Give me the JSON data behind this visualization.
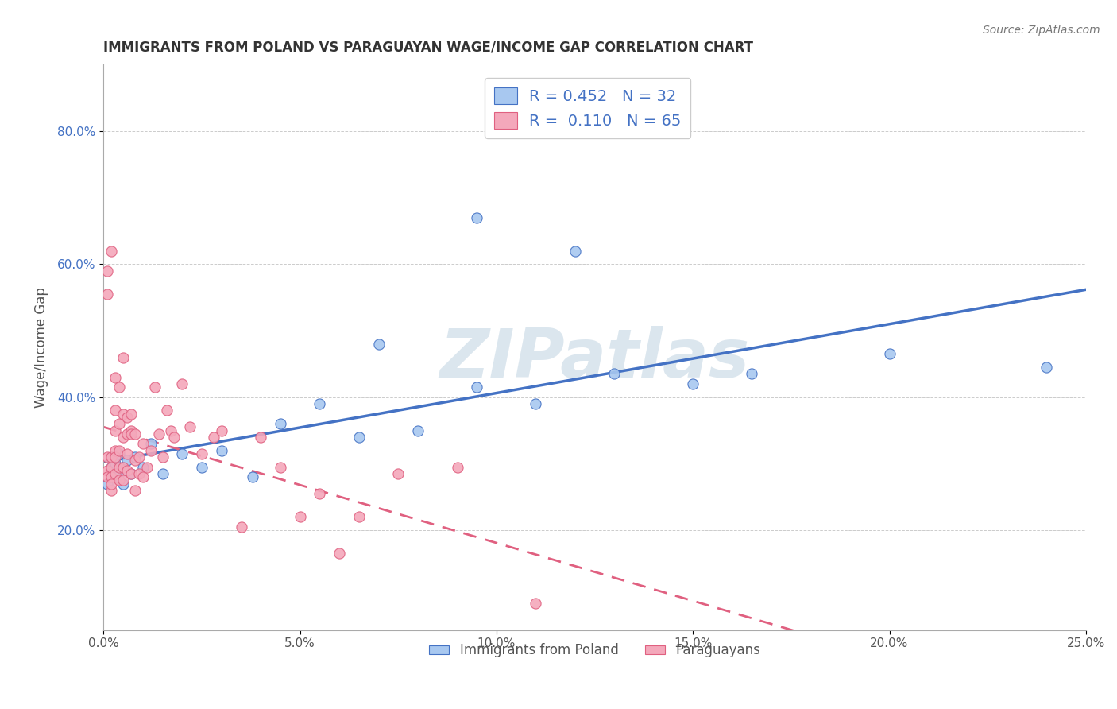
{
  "title": "IMMIGRANTS FROM POLAND VS PARAGUAYAN WAGE/INCOME GAP CORRELATION CHART",
  "source": "Source: ZipAtlas.com",
  "ylabel": "Wage/Income Gap",
  "xlim": [
    0.0,
    0.25
  ],
  "ylim": [
    0.05,
    0.9
  ],
  "xticks": [
    0.0,
    0.05,
    0.1,
    0.15,
    0.2,
    0.25
  ],
  "xticklabels": [
    "0.0%",
    "5.0%",
    "10.0%",
    "15.0%",
    "20.0%",
    "25.0%"
  ],
  "yticks": [
    0.2,
    0.4,
    0.6,
    0.8
  ],
  "yticklabels": [
    "20.0%",
    "40.0%",
    "60.0%",
    "80.0%"
  ],
  "R_blue": 0.452,
  "N_blue": 32,
  "R_pink": 0.11,
  "N_pink": 65,
  "blue_color": "#A8C8F0",
  "pink_color": "#F4A8BB",
  "blue_line_color": "#4472C4",
  "pink_line_color": "#E06080",
  "watermark": "ZIPatlas",
  "legend_label_blue": "Immigrants from Poland",
  "legend_label_pink": "Paraguayans",
  "blue_points_x": [
    0.001,
    0.002,
    0.002,
    0.003,
    0.003,
    0.004,
    0.005,
    0.005,
    0.006,
    0.007,
    0.008,
    0.01,
    0.012,
    0.015,
    0.02,
    0.025,
    0.03,
    0.038,
    0.045,
    0.055,
    0.065,
    0.08,
    0.095,
    0.11,
    0.13,
    0.15,
    0.165,
    0.2,
    0.24,
    0.095,
    0.12,
    0.07
  ],
  "blue_points_y": [
    0.27,
    0.295,
    0.31,
    0.28,
    0.3,
    0.315,
    0.27,
    0.29,
    0.305,
    0.285,
    0.31,
    0.295,
    0.33,
    0.285,
    0.315,
    0.295,
    0.32,
    0.28,
    0.36,
    0.39,
    0.34,
    0.35,
    0.415,
    0.39,
    0.435,
    0.42,
    0.435,
    0.465,
    0.445,
    0.67,
    0.62,
    0.48
  ],
  "pink_points_x": [
    0.001,
    0.001,
    0.001,
    0.001,
    0.001,
    0.002,
    0.002,
    0.002,
    0.002,
    0.002,
    0.002,
    0.003,
    0.003,
    0.003,
    0.003,
    0.003,
    0.003,
    0.004,
    0.004,
    0.004,
    0.004,
    0.004,
    0.005,
    0.005,
    0.005,
    0.005,
    0.005,
    0.006,
    0.006,
    0.006,
    0.006,
    0.007,
    0.007,
    0.007,
    0.007,
    0.008,
    0.008,
    0.008,
    0.009,
    0.009,
    0.01,
    0.01,
    0.011,
    0.012,
    0.013,
    0.014,
    0.015,
    0.016,
    0.017,
    0.018,
    0.02,
    0.022,
    0.025,
    0.028,
    0.03,
    0.035,
    0.04,
    0.045,
    0.05,
    0.055,
    0.06,
    0.065,
    0.075,
    0.09,
    0.11
  ],
  "pink_points_y": [
    0.29,
    0.31,
    0.28,
    0.555,
    0.59,
    0.295,
    0.31,
    0.28,
    0.26,
    0.62,
    0.27,
    0.285,
    0.32,
    0.38,
    0.35,
    0.31,
    0.43,
    0.295,
    0.275,
    0.415,
    0.36,
    0.32,
    0.295,
    0.375,
    0.34,
    0.46,
    0.275,
    0.345,
    0.315,
    0.37,
    0.29,
    0.35,
    0.375,
    0.285,
    0.345,
    0.305,
    0.26,
    0.345,
    0.31,
    0.285,
    0.33,
    0.28,
    0.295,
    0.32,
    0.415,
    0.345,
    0.31,
    0.38,
    0.35,
    0.34,
    0.42,
    0.355,
    0.315,
    0.34,
    0.35,
    0.205,
    0.34,
    0.295,
    0.22,
    0.255,
    0.165,
    0.22,
    0.285,
    0.295,
    0.09
  ]
}
